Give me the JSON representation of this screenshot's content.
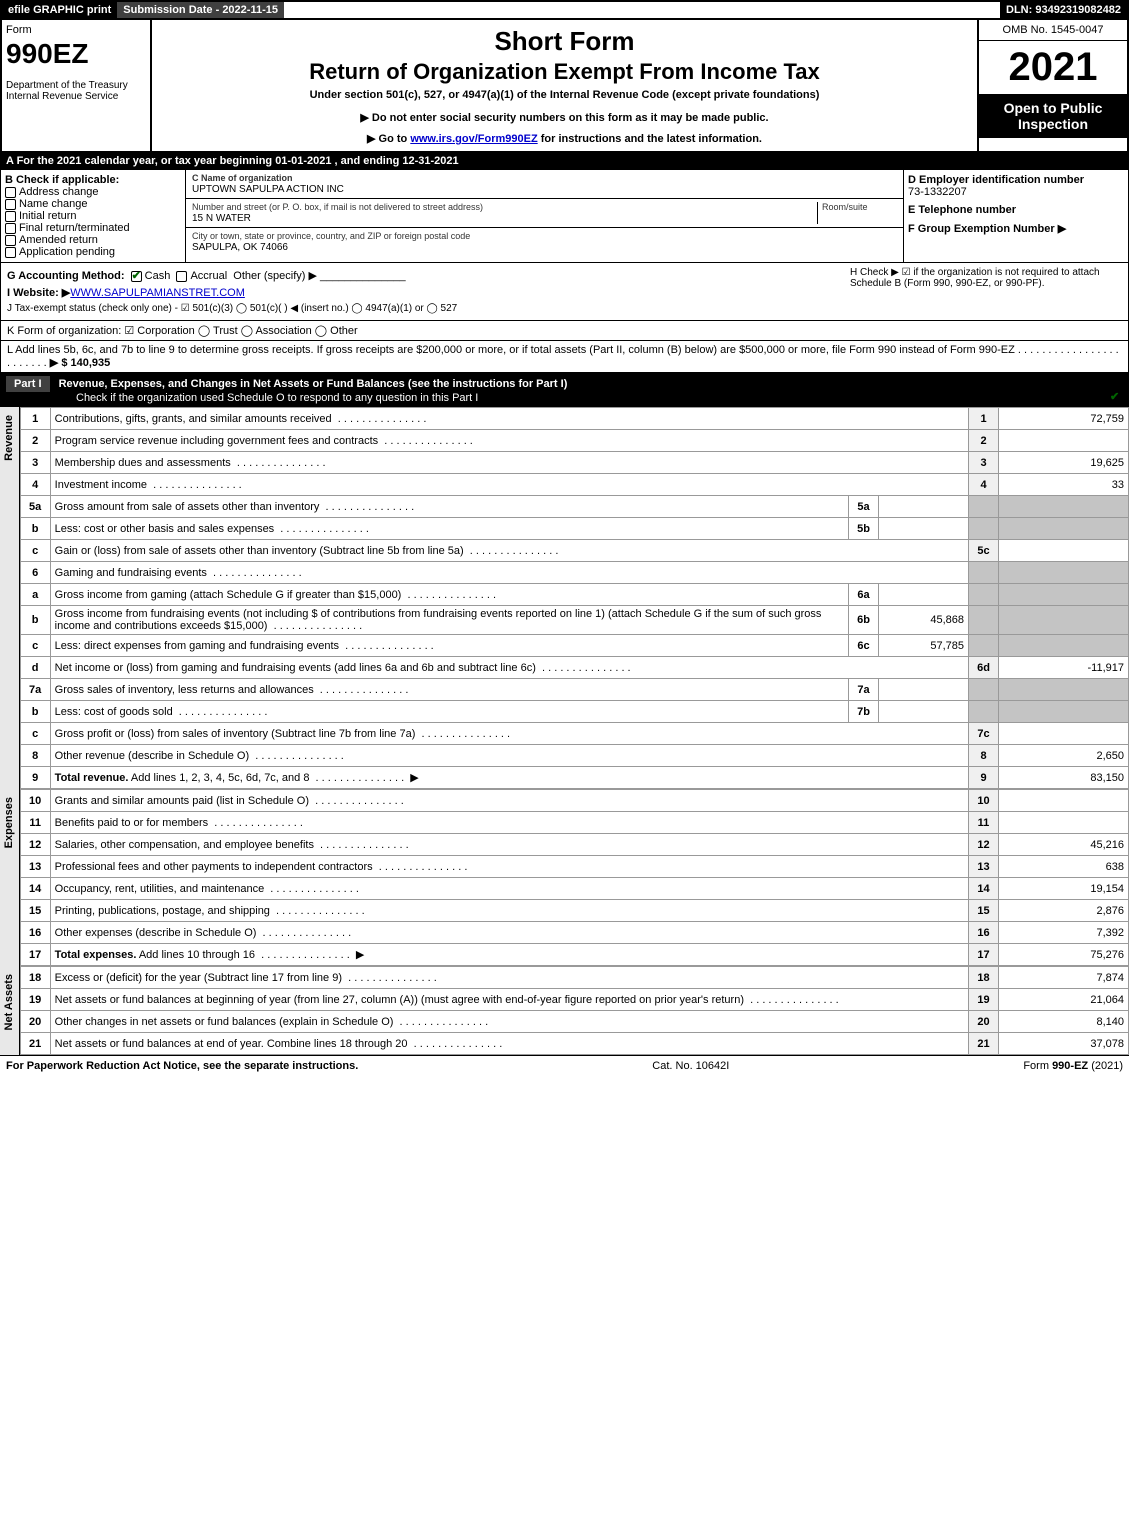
{
  "top": {
    "efile": "efile GRAPHIC print",
    "sub": "Submission Date - 2022-11-15",
    "dln": "DLN: 93492319082482"
  },
  "hdr": {
    "form": "Form",
    "code": "990EZ",
    "dept": "Department of the Treasury\nInternal Revenue Service",
    "t1": "Short Form",
    "t2": "Return of Organization Exempt From Income Tax",
    "under": "Under section 501(c), 527, or 4947(a)(1) of the Internal Revenue Code (except private foundations)",
    "n1": "▶ Do not enter social security numbers on this form as it may be made public.",
    "n2_pre": "▶ Go to ",
    "n2_link": "www.irs.gov/Form990EZ",
    "n2_post": " for instructions and the latest information.",
    "omb": "OMB No. 1545-0047",
    "year": "2021",
    "open": "Open to Public Inspection"
  },
  "a": "A  For the 2021 calendar year, or tax year beginning 01-01-2021 , and ending 12-31-2021",
  "b": {
    "label": "B  Check if applicable:",
    "opts": [
      "Address change",
      "Name change",
      "Initial return",
      "Final return/terminated",
      "Amended return",
      "Application pending"
    ],
    "c_lbl": "C Name of organization",
    "c_val": "UPTOWN SAPULPA ACTION INC",
    "addr_lbl": "Number and street (or P. O. box, if mail is not delivered to street address)",
    "room": "Room/suite",
    "addr": "15 N WATER",
    "city_lbl": "City or town, state or province, country, and ZIP or foreign postal code",
    "city": "SAPULPA, OK  74066",
    "d_lbl": "D Employer identification number",
    "d_val": "73-1332207",
    "e_lbl": "E Telephone number",
    "e_val": "",
    "f_lbl": "F Group Exemption Number   ▶",
    "f_val": ""
  },
  "g": {
    "lbl": "G Accounting Method:",
    "cash": "Cash",
    "accr": "Accrual",
    "other": "Other (specify) ▶"
  },
  "h": "H   Check ▶ ☑ if the organization is not required to attach Schedule B (Form 990, 990-EZ, or 990-PF).",
  "i": {
    "pre": "I Website: ▶",
    "url": "WWW.SAPULPAMIANSTRET.COM"
  },
  "j": "J Tax-exempt status (check only one) - ☑ 501(c)(3)  ◯ 501(c)(  ) ◀ (insert no.)  ◯ 4947(a)(1) or  ◯ 527",
  "k": "K Form of organization:  ☑ Corporation  ◯ Trust  ◯ Association  ◯ Other",
  "l": {
    "text": "L Add lines 5b, 6c, and 7b to line 9 to determine gross receipts. If gross receipts are $200,000 or more, or if total assets (Part II, column (B) below) are $500,000 or more, file Form 990 instead of Form 990-EZ",
    "amt": "▶ $ 140,935"
  },
  "p1": {
    "lbl": "Part I",
    "title": "Revenue, Expenses, and Changes in Net Assets or Fund Balances (see the instructions for Part I)",
    "sub": "Check if the organization used Schedule O to respond to any question in this Part I"
  },
  "rows": [
    {
      "n": "1",
      "d": "Contributions, gifts, grants, and similar amounts received",
      "r": "1",
      "v": "72,759"
    },
    {
      "n": "2",
      "d": "Program service revenue including government fees and contracts",
      "r": "2",
      "v": ""
    },
    {
      "n": "3",
      "d": "Membership dues and assessments",
      "r": "3",
      "v": "19,625"
    },
    {
      "n": "4",
      "d": "Investment income",
      "r": "4",
      "v": "33"
    },
    {
      "n": "5a",
      "d": "Gross amount from sale of assets other than inventory",
      "m": "5a",
      "mv": "",
      "gray": true
    },
    {
      "n": "b",
      "d": "Less: cost or other basis and sales expenses",
      "m": "5b",
      "mv": "",
      "gray": true
    },
    {
      "n": "c",
      "d": "Gain or (loss) from sale of assets other than inventory (Subtract line 5b from line 5a)",
      "r": "5c",
      "v": ""
    },
    {
      "n": "6",
      "d": "Gaming and fundraising events",
      "gray": true,
      "novr": true
    },
    {
      "n": "a",
      "d": "Gross income from gaming (attach Schedule G if greater than $15,000)",
      "m": "6a",
      "mv": "",
      "gray": true
    },
    {
      "n": "b",
      "d": "Gross income from fundraising events (not including $                          of contributions from fundraising events reported on line 1) (attach Schedule G if the sum of such gross income and contributions exceeds $15,000)",
      "m": "6b",
      "mv": "45,868",
      "gray": true
    },
    {
      "n": "c",
      "d": "Less: direct expenses from gaming and fundraising events",
      "m": "6c",
      "mv": "57,785",
      "gray": true
    },
    {
      "n": "d",
      "d": "Net income or (loss) from gaming and fundraising events (add lines 6a and 6b and subtract line 6c)",
      "r": "6d",
      "v": "-11,917"
    },
    {
      "n": "7a",
      "d": "Gross sales of inventory, less returns and allowances",
      "m": "7a",
      "mv": "",
      "gray": true
    },
    {
      "n": "b",
      "d": "Less: cost of goods sold",
      "m": "7b",
      "mv": "",
      "gray": true
    },
    {
      "n": "c",
      "d": "Gross profit or (loss) from sales of inventory (Subtract line 7b from line 7a)",
      "r": "7c",
      "v": ""
    },
    {
      "n": "8",
      "d": "Other revenue (describe in Schedule O)",
      "r": "8",
      "v": "2,650"
    },
    {
      "n": "9",
      "d": "Total revenue. Add lines 1, 2, 3, 4, 5c, 6d, 7c, and 8",
      "r": "9",
      "v": "83,150",
      "bold": true,
      "arrow": true
    }
  ],
  "exp": [
    {
      "n": "10",
      "d": "Grants and similar amounts paid (list in Schedule O)",
      "r": "10",
      "v": ""
    },
    {
      "n": "11",
      "d": "Benefits paid to or for members",
      "r": "11",
      "v": ""
    },
    {
      "n": "12",
      "d": "Salaries, other compensation, and employee benefits",
      "r": "12",
      "v": "45,216"
    },
    {
      "n": "13",
      "d": "Professional fees and other payments to independent contractors",
      "r": "13",
      "v": "638"
    },
    {
      "n": "14",
      "d": "Occupancy, rent, utilities, and maintenance",
      "r": "14",
      "v": "19,154"
    },
    {
      "n": "15",
      "d": "Printing, publications, postage, and shipping",
      "r": "15",
      "v": "2,876"
    },
    {
      "n": "16",
      "d": "Other expenses (describe in Schedule O)",
      "r": "16",
      "v": "7,392"
    },
    {
      "n": "17",
      "d": "Total expenses. Add lines 10 through 16",
      "r": "17",
      "v": "75,276",
      "bold": true,
      "arrow": true
    }
  ],
  "net": [
    {
      "n": "18",
      "d": "Excess or (deficit) for the year (Subtract line 17 from line 9)",
      "r": "18",
      "v": "7,874"
    },
    {
      "n": "19",
      "d": "Net assets or fund balances at beginning of year (from line 27, column (A)) (must agree with end-of-year figure reported on prior year's return)",
      "r": "19",
      "v": "21,064"
    },
    {
      "n": "20",
      "d": "Other changes in net assets or fund balances (explain in Schedule O)",
      "r": "20",
      "v": "8,140"
    },
    {
      "n": "21",
      "d": "Net assets or fund balances at end of year. Combine lines 18 through 20",
      "r": "21",
      "v": "37,078"
    }
  ],
  "sections": {
    "rev": "Revenue",
    "exp": "Expenses",
    "net": "Net Assets"
  },
  "footer": {
    "l": "For Paperwork Reduction Act Notice, see the separate instructions.",
    "m": "Cat. No. 10642I",
    "r": "Form 990-EZ (2021)"
  }
}
